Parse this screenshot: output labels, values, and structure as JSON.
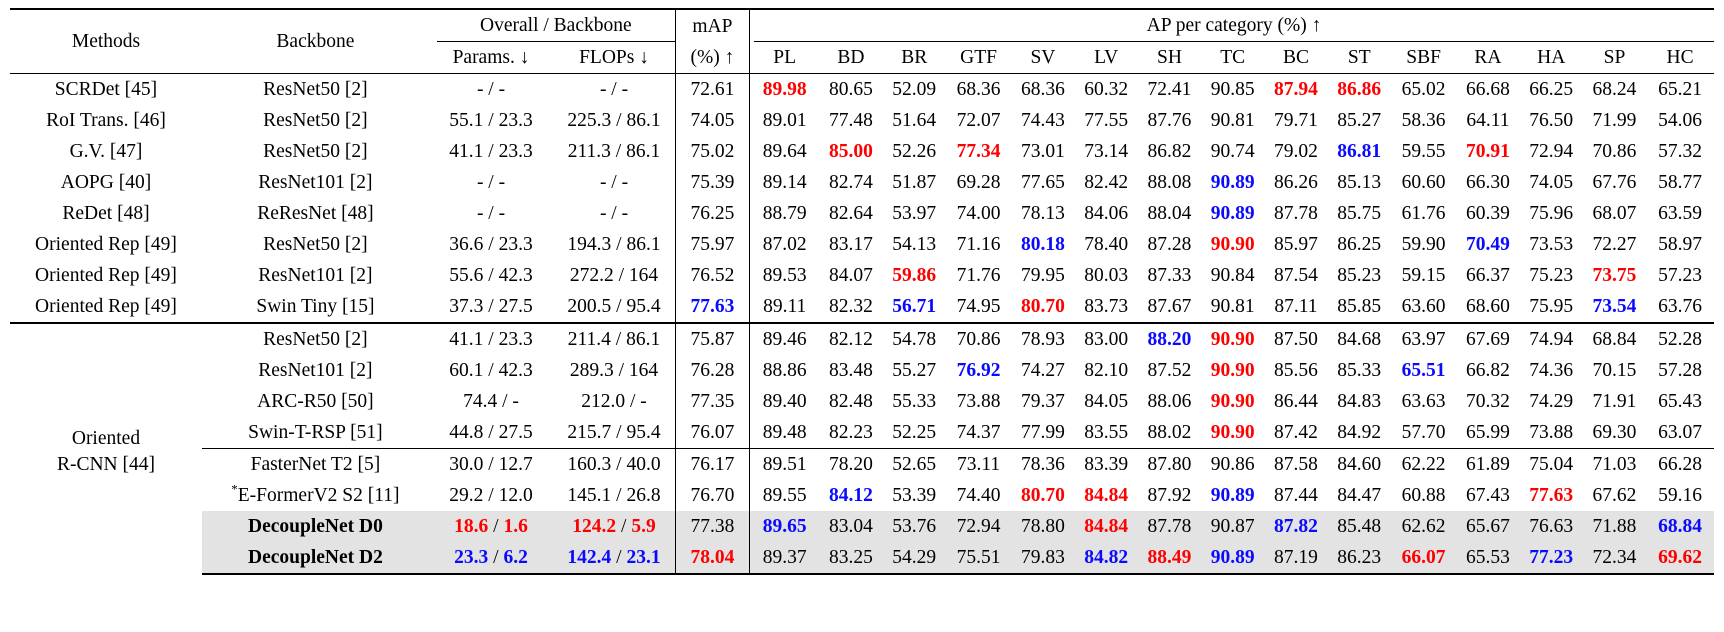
{
  "header": {
    "methods": "Methods",
    "backbone": "Backbone",
    "overall": "Overall / Backbone",
    "params": "Params. ↓",
    "flops": "FLOPs ↓",
    "map_top": "mAP",
    "map_bottom": "(%) ↑",
    "ap_per_category": "AP per category (%) ↑",
    "categories": [
      "PL",
      "BD",
      "BR",
      "GTF",
      "SV",
      "LV",
      "SH",
      "TC",
      "BC",
      "ST",
      "SBF",
      "RA",
      "HA",
      "SP",
      "HC"
    ]
  },
  "group_label": [
    "Oriented",
    "R-CNN [44]"
  ],
  "colors": {
    "best": "#ff0000",
    "second": "#0a0aff",
    "shade": "#e3e3e3"
  },
  "rows": [
    {
      "method": "SCRDet [45]",
      "backbone": "ResNet50 [2]",
      "params": "- / -",
      "flops": "- / -",
      "map": "72.61",
      "ap": [
        "89.98",
        "80.65",
        "52.09",
        "68.36",
        "68.36",
        "60.32",
        "72.41",
        "90.85",
        "87.94",
        "86.86",
        "65.02",
        "66.68",
        "66.25",
        "68.24",
        "65.21"
      ]
    },
    {
      "method": "RoI Trans. [46]",
      "backbone": "ResNet50 [2]",
      "params": "55.1 / 23.3",
      "flops": "225.3 / 86.1",
      "map": "74.05",
      "ap": [
        "89.01",
        "77.48",
        "51.64",
        "72.07",
        "74.43",
        "77.55",
        "87.76",
        "90.81",
        "79.71",
        "85.27",
        "58.36",
        "64.11",
        "76.50",
        "71.99",
        "54.06"
      ]
    },
    {
      "method": "G.V. [47]",
      "backbone": "ResNet50 [2]",
      "params": "41.1 / 23.3",
      "flops": "211.3 / 86.1",
      "map": "75.02",
      "ap": [
        "89.64",
        "85.00",
        "52.26",
        "77.34",
        "73.01",
        "73.14",
        "86.82",
        "90.74",
        "79.02",
        "86.81",
        "59.55",
        "70.91",
        "72.94",
        "70.86",
        "57.32"
      ]
    },
    {
      "method": "AOPG [40]",
      "backbone": "ResNet101 [2]",
      "params": "- / -",
      "flops": "- / -",
      "map": "75.39",
      "ap": [
        "89.14",
        "82.74",
        "51.87",
        "69.28",
        "77.65",
        "82.42",
        "88.08",
        "90.89",
        "86.26",
        "85.13",
        "60.60",
        "66.30",
        "74.05",
        "67.76",
        "58.77"
      ]
    },
    {
      "method": "ReDet [48]",
      "backbone": "ReResNet [48]",
      "params": "- / -",
      "flops": "- / -",
      "map": "76.25",
      "ap": [
        "88.79",
        "82.64",
        "53.97",
        "74.00",
        "78.13",
        "84.06",
        "88.04",
        "90.89",
        "87.78",
        "85.75",
        "61.76",
        "60.39",
        "75.96",
        "68.07",
        "63.59"
      ]
    },
    {
      "method": "Oriented Rep [49]",
      "backbone": "ResNet50 [2]",
      "params": "36.6 / 23.3",
      "flops": "194.3 / 86.1",
      "map": "75.97",
      "ap": [
        "87.02",
        "83.17",
        "54.13",
        "71.16",
        "80.18",
        "78.40",
        "87.28",
        "90.90",
        "85.97",
        "86.25",
        "59.90",
        "70.49",
        "73.53",
        "72.27",
        "58.97"
      ]
    },
    {
      "method": "Oriented Rep [49]",
      "backbone": "ResNet101 [2]",
      "params": "55.6 / 42.3",
      "flops": "272.2 / 164",
      "map": "76.52",
      "ap": [
        "89.53",
        "84.07",
        "59.86",
        "71.76",
        "79.95",
        "80.03",
        "87.33",
        "90.84",
        "87.54",
        "85.23",
        "59.15",
        "66.37",
        "75.23",
        "73.75",
        "57.23"
      ]
    },
    {
      "method": "Oriented Rep [49]",
      "backbone": "Swin Tiny [15]",
      "params": "37.3 / 27.5",
      "flops": "200.5 / 95.4",
      "map": "77.63",
      "ap": [
        "89.11",
        "82.32",
        "56.71",
        "74.95",
        "80.70",
        "83.73",
        "87.67",
        "90.81",
        "87.11",
        "85.85",
        "63.60",
        "68.60",
        "75.95",
        "73.54",
        "63.76"
      ]
    },
    {
      "method": "",
      "backbone": "ResNet50 [2]",
      "params": "41.1 / 23.3",
      "flops": "211.4 / 86.1",
      "map": "75.87",
      "ap": [
        "89.46",
        "82.12",
        "54.78",
        "70.86",
        "78.93",
        "83.00",
        "88.20",
        "90.90",
        "87.50",
        "84.68",
        "63.97",
        "67.69",
        "74.94",
        "68.84",
        "52.28"
      ]
    },
    {
      "method": "",
      "backbone": "ResNet101 [2]",
      "params": "60.1 / 42.3",
      "flops": "289.3 / 164",
      "map": "76.28",
      "ap": [
        "88.86",
        "83.48",
        "55.27",
        "76.92",
        "74.27",
        "82.10",
        "87.52",
        "90.90",
        "85.56",
        "85.33",
        "65.51",
        "66.82",
        "74.36",
        "70.15",
        "57.28"
      ]
    },
    {
      "method": "",
      "backbone": "ARC-R50 [50]",
      "params": "74.4 / -",
      "flops": "212.0 / -",
      "map": "77.35",
      "ap": [
        "89.40",
        "82.48",
        "55.33",
        "73.88",
        "79.37",
        "84.05",
        "88.06",
        "90.90",
        "86.44",
        "84.83",
        "63.63",
        "70.32",
        "74.29",
        "71.91",
        "65.43"
      ]
    },
    {
      "method": "",
      "backbone": "Swin-T-RSP [51]",
      "params": "44.8 / 27.5",
      "flops": "215.7 / 95.4",
      "map": "76.07",
      "ap": [
        "89.48",
        "82.23",
        "52.25",
        "74.37",
        "77.99",
        "83.55",
        "88.02",
        "90.90",
        "87.42",
        "84.92",
        "57.70",
        "65.99",
        "73.88",
        "69.30",
        "63.07"
      ]
    },
    {
      "method": "",
      "backbone": "FasterNet T2 [5]",
      "params": "30.0 / 12.7",
      "flops": "160.3 / 40.0",
      "map": "76.17",
      "ap": [
        "89.51",
        "78.20",
        "52.65",
        "73.11",
        "78.36",
        "83.39",
        "87.80",
        "90.86",
        "87.58",
        "84.60",
        "62.22",
        "61.89",
        "75.04",
        "71.03",
        "66.28"
      ]
    },
    {
      "method": "",
      "backbone_sup": "*",
      "backbone": "E-FormerV2 S2 [11]",
      "params": "29.2 / 12.0",
      "flops": "145.1 / 26.8",
      "map": "76.70",
      "ap": [
        "89.55",
        "84.12",
        "53.39",
        "74.40",
        "80.70",
        "84.84",
        "87.92",
        "90.89",
        "87.44",
        "84.47",
        "60.88",
        "67.43",
        "77.63",
        "67.62",
        "59.16"
      ]
    },
    {
      "method": "",
      "backbone": "DecoupleNet D0",
      "params_a": "18.6",
      "params_b": "1.6",
      "flops_a": "124.2",
      "flops_b": "5.9",
      "map": "77.38",
      "ap": [
        "89.65",
        "83.04",
        "53.76",
        "72.94",
        "78.80",
        "84.84",
        "87.78",
        "90.87",
        "87.82",
        "85.48",
        "62.62",
        "65.67",
        "76.63",
        "71.88",
        "68.84"
      ]
    },
    {
      "method": "",
      "backbone": "DecoupleNet D2",
      "params_a": "23.3",
      "params_b": "6.2",
      "flops_a": "142.4",
      "flops_b": "23.1",
      "map": "78.04",
      "ap": [
        "89.37",
        "83.25",
        "54.29",
        "75.51",
        "79.83",
        "84.82",
        "88.49",
        "90.89",
        "87.19",
        "86.23",
        "66.07",
        "65.53",
        "77.23",
        "72.34",
        "69.62"
      ]
    }
  ]
}
